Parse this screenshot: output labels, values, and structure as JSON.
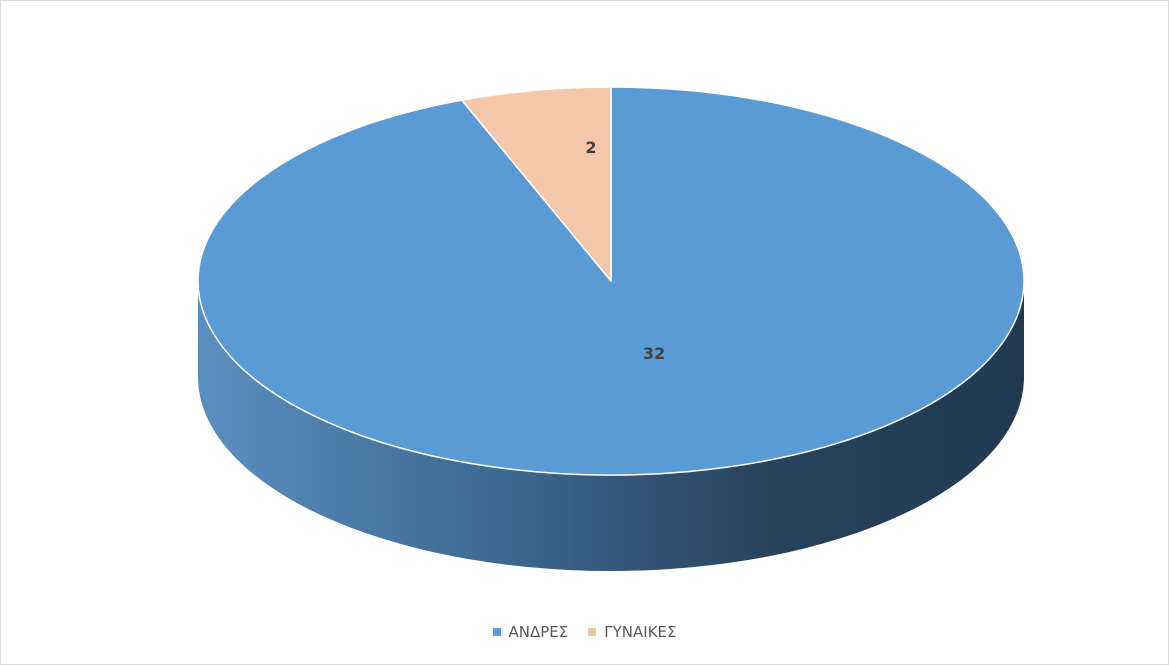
{
  "chart_data": {
    "type": "pie",
    "categories": [
      "ΑΝΔΡΕΣ",
      "ΓΥΝΑΙΚΕΣ"
    ],
    "values": [
      32,
      2
    ],
    "colors": [
      "#5b9bd5",
      "#f4c7aa"
    ],
    "side_colors": [
      "#44719b",
      "#b08f7a"
    ],
    "style": "3d",
    "data_labels": [
      "32",
      "2"
    ],
    "legend_position": "bottom",
    "legend": [
      "ΑΝΔΡΕΣ",
      "ΓΥΝΑΙΚΕΣ"
    ]
  }
}
